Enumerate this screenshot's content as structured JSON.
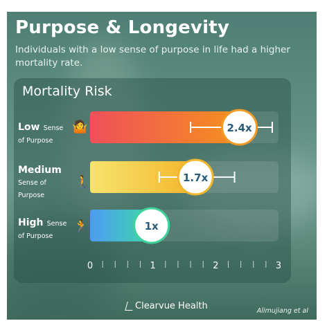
{
  "title": "Purpose & Longevity",
  "subtitle": "Individuals with a low sense of purpose in life had a higher mortality rate.",
  "chart_data": {
    "type": "bar",
    "title": "Mortality Risk",
    "categories": [
      "Low",
      "Medium",
      "High"
    ],
    "category_sublabels": [
      "Sense of Purpose",
      "Sense of Purpose",
      "Sense of Purpose"
    ],
    "values": [
      2.4,
      1.7,
      1.0
    ],
    "data_labels": [
      "2.4x",
      "1.7x",
      "1x"
    ],
    "error_bars": [
      [
        1.6,
        2.9
      ],
      [
        1.1,
        2.3
      ],
      null
    ],
    "x_ticks": [
      "0",
      "1",
      "2",
      "3"
    ],
    "xlim": [
      0,
      3
    ],
    "grid": false,
    "colors": {
      "low": [
        "#ef4f5a",
        "#f6921e"
      ],
      "medium": [
        "#f7e36e",
        "#f4b52a"
      ],
      "high": [
        "#4d9bf4",
        "#3dd9a6"
      ],
      "badge_text": "#2a5b78",
      "badge_ring_low": "#f39a24",
      "badge_ring_medium": "#f2b62c",
      "badge_ring_high": "#3fd39b"
    },
    "icons": [
      "person-shrugging-icon",
      "person-walking-icon",
      "person-running-icon"
    ]
  },
  "labels": {
    "low_big": "Low",
    "low_small_a": "Sense",
    "low_small_b": "of Purpose",
    "medium_big": "Medium",
    "medium_small_a": "Sense of",
    "medium_small_b": "Purpose",
    "high_big": "High",
    "high_small_a": "Sense",
    "high_small_b": "of Purpose"
  },
  "footer": {
    "brand": "Clearvue Health",
    "credit": "Alimujiang et al"
  }
}
